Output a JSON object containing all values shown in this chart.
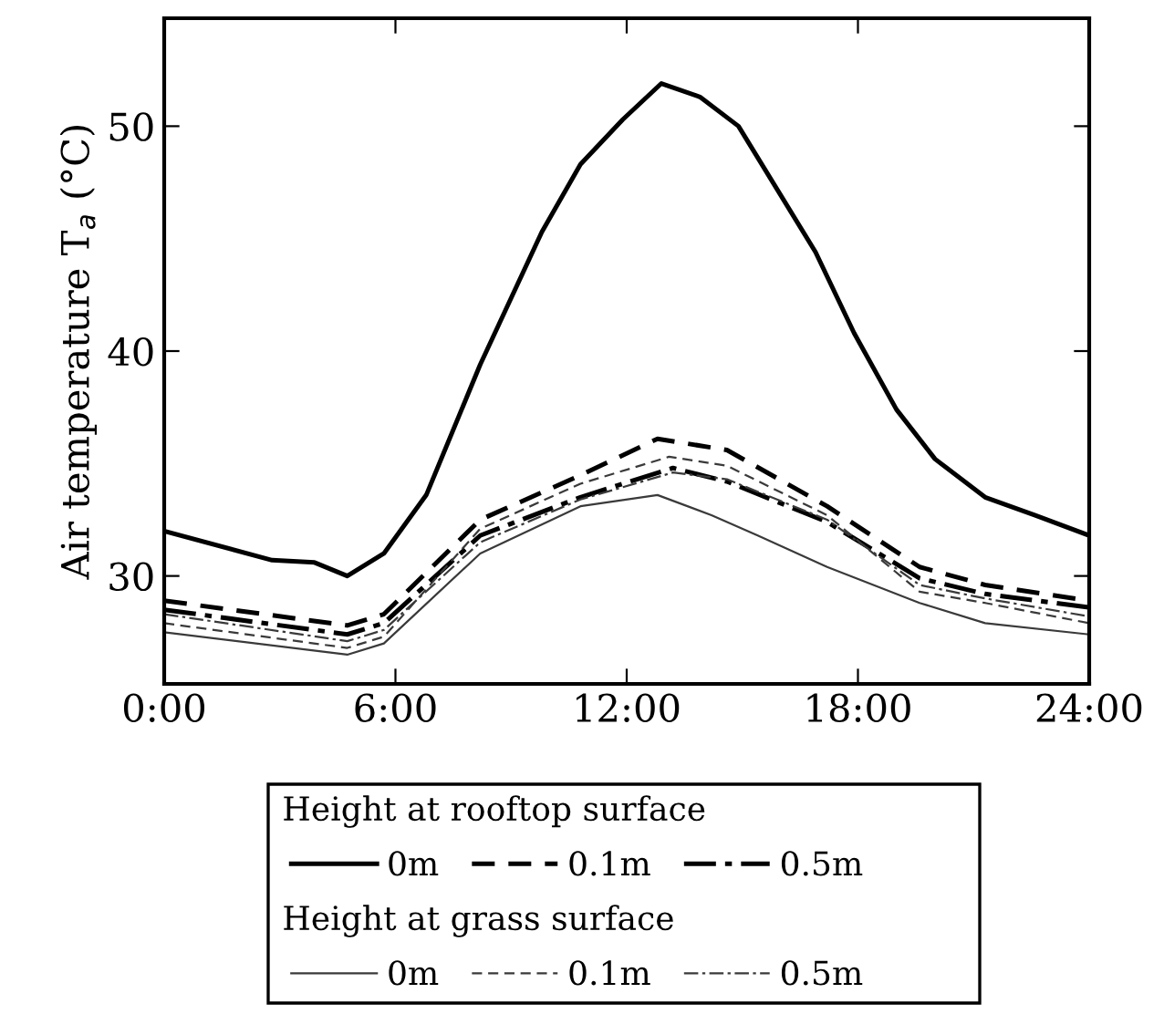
{
  "chart_data": {
    "type": "line",
    "ylabel": "Air temperature T$_{a}$ (°C)",
    "xlim": [
      0,
      24
    ],
    "xticks": [
      {
        "value": 0,
        "label": "0:00"
      },
      {
        "value": 6,
        "label": "6:00"
      },
      {
        "value": 12,
        "label": "12:00"
      },
      {
        "value": 18,
        "label": "18:00"
      },
      {
        "value": 24,
        "label": "24:00"
      }
    ],
    "ylim": [
      25.2,
      54.8
    ],
    "yticks": [
      30,
      40,
      50
    ],
    "grid": false,
    "legend": "bottom",
    "marker": "none",
    "annotations": [
      "Height at rooftop surface",
      "Height at grass surface"
    ],
    "series": [
      {
        "name": "0m",
        "color": "#000000",
        "line_style": "solid",
        "x": [
          0,
          2.8,
          3.9,
          4.75,
          5.7,
          6.8,
          8.2,
          9.8,
          10.8,
          11.9,
          12.9,
          13.9,
          14.9,
          16.9,
          17.9,
          19.0,
          20.0,
          21.3,
          22.6,
          24
        ],
        "values": [
          32.0,
          30.7,
          30.6,
          30.0,
          31.0,
          33.6,
          39.4,
          45.3,
          48.3,
          50.3,
          51.9,
          51.3,
          50.0,
          44.4,
          40.8,
          37.4,
          35.2,
          33.5,
          32.7,
          31.8
        ]
      },
      {
        "name": "0.1m",
        "color": "#000000",
        "line_style": "dashed",
        "x": [
          0,
          4.75,
          5.7,
          8.2,
          10.7,
          12.8,
          14.6,
          17.2,
          19.6,
          21.3,
          24
        ],
        "values": [
          28.9,
          27.8,
          28.3,
          32.5,
          34.4,
          36.1,
          35.6,
          33.1,
          30.4,
          29.6,
          28.9
        ]
      },
      {
        "name": "0.5m",
        "color": "#000000",
        "line_style": "dashdot",
        "x": [
          0,
          4.75,
          5.7,
          8.2,
          10.8,
          13.2,
          14.6,
          17.2,
          19.6,
          21.3,
          24
        ],
        "values": [
          28.5,
          27.4,
          27.9,
          31.8,
          33.5,
          34.8,
          34.2,
          32.4,
          29.9,
          29.2,
          28.6
        ]
      },
      {
        "name": "0m",
        "color": "#3a3a3a",
        "line_style": "solid",
        "x": [
          0,
          4.75,
          5.7,
          8.2,
          10.8,
          12.8,
          14.2,
          15.4,
          17.2,
          19.6,
          21.3,
          24
        ],
        "values": [
          27.5,
          26.5,
          27.0,
          31.0,
          33.1,
          33.6,
          32.7,
          31.8,
          30.4,
          28.8,
          27.9,
          27.4
        ]
      },
      {
        "name": "0.1m",
        "color": "#3a3a3a",
        "line_style": "dashed",
        "x": [
          0,
          4.75,
          5.7,
          8.2,
          10.8,
          13.1,
          14.6,
          17.2,
          19.6,
          21.3,
          24
        ],
        "values": [
          27.9,
          26.8,
          27.3,
          32.1,
          34.1,
          35.3,
          34.9,
          32.7,
          29.3,
          28.8,
          27.9
        ]
      },
      {
        "name": "0.5m",
        "color": "#3a3a3a",
        "line_style": "dashdot",
        "x": [
          0,
          4.75,
          5.7,
          8.2,
          10.8,
          13.2,
          14.6,
          17.2,
          19.6,
          21.3,
          24
        ],
        "values": [
          28.3,
          27.1,
          27.6,
          31.5,
          33.4,
          34.6,
          34.3,
          32.5,
          29.6,
          29.0,
          28.2
        ]
      }
    ]
  }
}
